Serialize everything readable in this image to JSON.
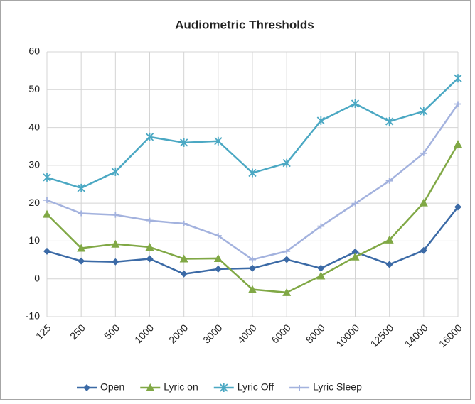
{
  "chart_data": {
    "type": "line",
    "title": "Audiometric Thresholds",
    "categories": [
      "125",
      "250",
      "500",
      "1000",
      "2000",
      "3000",
      "4000",
      "6000",
      "8000",
      "10000",
      "12500",
      "14000",
      "16000"
    ],
    "series": [
      {
        "name": "Open",
        "color": "#3b6aa6",
        "marker": "diamond",
        "values": [
          7.3,
          4.7,
          4.5,
          5.3,
          1.3,
          2.6,
          2.8,
          5.1,
          2.8,
          7.1,
          3.8,
          7.5,
          19
        ]
      },
      {
        "name": "Lyric on",
        "color": "#80a845",
        "marker": "triangle",
        "values": [
          17.1,
          8.1,
          9.2,
          8.4,
          5.3,
          5.4,
          -2.8,
          -3.6,
          0.8,
          5.8,
          10.3,
          20.1,
          35.6
        ]
      },
      {
        "name": "Lyric Off",
        "color": "#4ba8c3",
        "marker": "star",
        "values": [
          26.8,
          24,
          28.3,
          37.5,
          36,
          36.4,
          28,
          30.6,
          41.8,
          46.3,
          41.6,
          44.3,
          53
        ]
      },
      {
        "name": "Lyric Sleep",
        "color": "#a3b2de",
        "marker": "plus",
        "values": [
          20.8,
          17.3,
          16.9,
          15.4,
          14.6,
          11.4,
          5.1,
          7.3,
          13.9,
          19.9,
          25.9,
          33.2,
          46.2
        ]
      }
    ],
    "ylim": [
      -10,
      60
    ],
    "yticks": [
      -10,
      0,
      10,
      20,
      30,
      40,
      50,
      60
    ],
    "grid": true,
    "legend": "bottom"
  }
}
